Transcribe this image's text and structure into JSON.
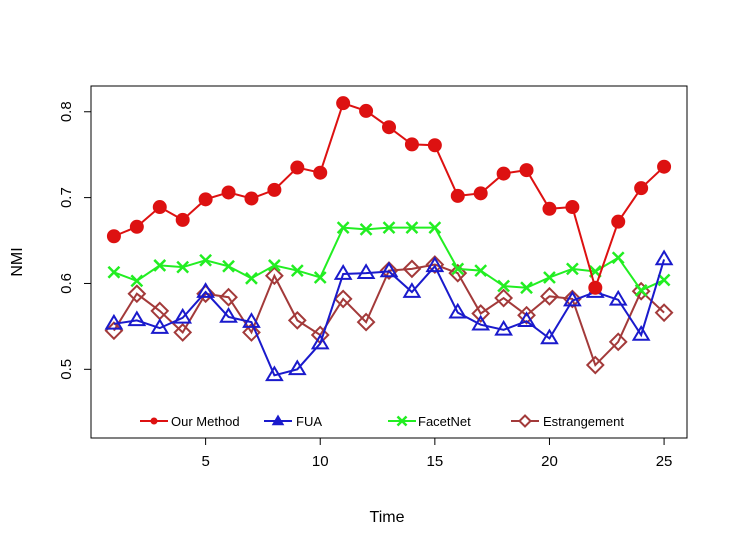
{
  "chart_data": {
    "type": "line",
    "title": "",
    "xlabel": "Time",
    "ylabel": "NMI",
    "xlim": [
      0,
      26
    ],
    "ylim": [
      0.42,
      0.83
    ],
    "x_ticks": [
      5,
      10,
      15,
      20,
      25
    ],
    "y_ticks": [
      0.5,
      0.6,
      0.7,
      0.8
    ],
    "x_tick_labels": [
      "5",
      "10",
      "15",
      "20",
      "25"
    ],
    "y_tick_labels": [
      "0.5",
      "0.6",
      "0.7",
      "0.8"
    ],
    "x": [
      1,
      2,
      3,
      4,
      5,
      6,
      7,
      8,
      9,
      10,
      11,
      12,
      13,
      14,
      15,
      16,
      17,
      18,
      19,
      20,
      21,
      22,
      23,
      24,
      25
    ],
    "legend_position": "bottom-inside",
    "series": [
      {
        "name": "Our Method",
        "color": "#dd1111",
        "marker": "filled-circle",
        "values": [
          0.655,
          0.666,
          0.689,
          0.674,
          0.698,
          0.706,
          0.699,
          0.709,
          0.735,
          0.729,
          0.81,
          0.801,
          0.782,
          0.762,
          0.761,
          0.702,
          0.705,
          0.728,
          0.732,
          0.687,
          0.689,
          0.595,
          0.672,
          0.711,
          0.736
        ]
      },
      {
        "name": "FUA",
        "color": "#1a1acc",
        "marker": "open-triangle",
        "values": [
          0.553,
          0.557,
          0.548,
          0.56,
          0.59,
          0.561,
          0.555,
          0.493,
          0.5,
          0.53,
          0.611,
          0.612,
          0.614,
          0.59,
          0.62,
          0.566,
          0.552,
          0.546,
          0.556,
          0.536,
          0.58,
          0.59,
          0.581,
          0.54,
          0.628
        ]
      },
      {
        "name": "FacetNet",
        "color": "#22ee22",
        "marker": "cross",
        "values": [
          0.613,
          0.603,
          0.621,
          0.619,
          0.627,
          0.62,
          0.606,
          0.621,
          0.615,
          0.607,
          0.665,
          0.663,
          0.665,
          0.665,
          0.665,
          0.617,
          0.615,
          0.597,
          0.595,
          0.607,
          0.617,
          0.614,
          0.63,
          0.592,
          0.604
        ]
      },
      {
        "name": "Estrangement",
        "color": "#a33a3a",
        "marker": "open-diamond",
        "values": [
          0.545,
          0.588,
          0.568,
          0.543,
          0.588,
          0.584,
          0.543,
          0.609,
          0.557,
          0.54,
          0.582,
          0.555,
          0.615,
          0.617,
          0.622,
          0.612,
          0.565,
          0.583,
          0.563,
          0.585,
          0.582,
          0.505,
          0.532,
          0.591,
          0.566
        ]
      }
    ]
  }
}
